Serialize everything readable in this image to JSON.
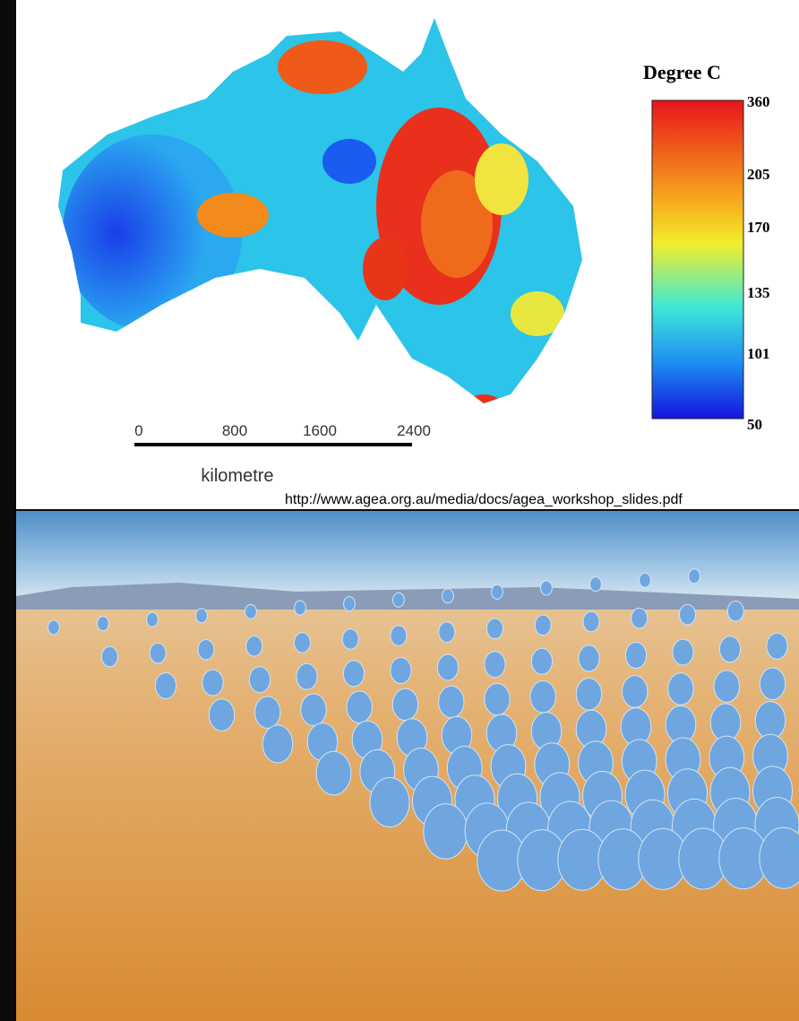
{
  "legend": {
    "title": "Degree C",
    "ticks": [
      360,
      205,
      170,
      135,
      101,
      50
    ]
  },
  "scale_bar": {
    "ticks": [
      0,
      800,
      1600,
      2400
    ],
    "unit": "kilometre"
  },
  "source": "http://www.agea.org.au/media/docs/agea_workshop_slides.pdf"
}
